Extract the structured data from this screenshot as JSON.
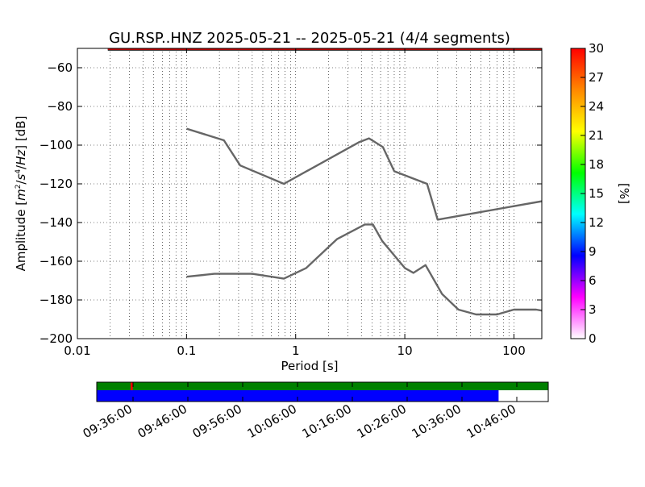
{
  "chart_data": {
    "type": "line",
    "title": "GU.RSP..HNZ   2025-05-21 -- 2025-05-21  (4/4 segments)",
    "xlabel": "Period [s]",
    "ylabel_parts": [
      "Amplitude [",
      "m",
      "2",
      "/",
      "s",
      "4",
      "/",
      "Hz",
      "] [dB]"
    ],
    "x_scale": "log",
    "xlim": [
      0.01,
      180
    ],
    "ylim": [
      -200,
      -50
    ],
    "grid": true,
    "x_ticks": [
      {
        "value": 0.01,
        "label": "0.01"
      },
      {
        "value": 0.1,
        "label": "0.1"
      },
      {
        "value": 1,
        "label": "1"
      },
      {
        "value": 10,
        "label": "10"
      },
      {
        "value": 100,
        "label": "100"
      }
    ],
    "y_ticks": [
      {
        "value": -60,
        "label": "−60"
      },
      {
        "value": -80,
        "label": "−80"
      },
      {
        "value": -100,
        "label": "−100"
      },
      {
        "value": -120,
        "label": "−120"
      },
      {
        "value": -140,
        "label": "−140"
      },
      {
        "value": -160,
        "label": "−160"
      },
      {
        "value": -180,
        "label": "−180"
      },
      {
        "value": -200,
        "label": "−200"
      }
    ],
    "series": [
      {
        "color": "#666666",
        "x": [
          0.1,
          0.22,
          0.31,
          0.78,
          3.8,
          4.7,
          6.3,
          8.0,
          16,
          20,
          180
        ],
        "y": [
          -91.5,
          -97.5,
          -110.5,
          -120,
          -98.5,
          -96.5,
          -101,
          -113.5,
          -120,
          -138.5,
          -129
        ]
      },
      {
        "color": "#666666",
        "x": [
          0.1,
          0.18,
          0.4,
          0.78,
          1.25,
          2.4,
          4.3,
          5.1,
          6.2,
          10,
          12,
          15.5,
          22,
          31,
          45,
          70,
          100,
          160,
          180
        ],
        "y": [
          -168,
          -166.5,
          -166.5,
          -169,
          -163.5,
          -148.5,
          -141,
          -141,
          -149.5,
          -163.5,
          -166,
          -162,
          -177,
          -185,
          -187.5,
          -187.5,
          -185,
          -185,
          -185.5
        ]
      }
    ],
    "top_band": {
      "x_start": 0.019,
      "x_end": 180,
      "y": -50.5,
      "color": "#cc0000",
      "edge_color": "#000000"
    },
    "colorbar": {
      "label": "[%]",
      "range": [
        0,
        30
      ],
      "ticks": [
        "0",
        "3",
        "6",
        "9",
        "12",
        "15",
        "18",
        "21",
        "24",
        "27",
        "30"
      ],
      "colors": [
        "#ffffff",
        "#ff00ff",
        "#0000ff",
        "#00ffff",
        "#00ff00",
        "#ffff00",
        "#ff8800",
        "#ff0000"
      ]
    },
    "timeline": {
      "tick_labels": [
        "09:36:00",
        "09:46:00",
        "09:56:00",
        "10:06:00",
        "10:16:00",
        "10:26:00",
        "10:36:00",
        "10:46:00"
      ],
      "data_coverage": {
        "start_frac": 0.0,
        "end_frac": 1.0,
        "color": "#008000"
      },
      "gap_marker": {
        "frac": 0.077,
        "color": "#ff0000"
      },
      "psd_coverage": {
        "start_frac": 0.0,
        "end_frac": 0.89,
        "color": "#0000ff"
      }
    }
  }
}
